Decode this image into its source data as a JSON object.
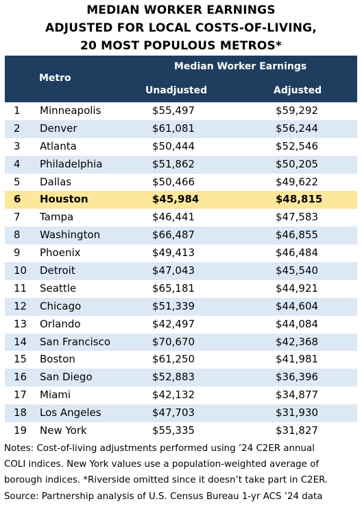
{
  "title_lines": [
    "MEDIAN WORKER EARNINGS",
    "ADJUSTED FOR LOCAL COSTS-OF-LIVING,",
    "20 MOST POPULOUS METROS*"
  ],
  "header": {
    "metro": "Metro",
    "group": "Median Worker Earnings",
    "unadjusted": "Unadjusted",
    "adjusted": "Adjusted"
  },
  "colors": {
    "header_bg": "#1f3e5f",
    "alt_row": "#dde8f5",
    "highlight_row": "#fde79a"
  },
  "chart_data": {
    "type": "table",
    "title": "MEDIAN WORKER EARNINGS ADJUSTED FOR LOCAL COSTS-OF-LIVING, 20 MOST POPULOUS METROS*",
    "columns": [
      "",
      "Metro",
      "Unadjusted",
      "Adjusted"
    ],
    "highlight_rank": "6",
    "rows": [
      {
        "rank": "1",
        "metro": "Minneapolis",
        "unadjusted": "$55,497",
        "adjusted": "$59,292"
      },
      {
        "rank": "2",
        "metro": "Denver",
        "unadjusted": "$61,081",
        "adjusted": "$56,244"
      },
      {
        "rank": "3",
        "metro": "Atlanta",
        "unadjusted": "$50,444",
        "adjusted": "$52,546"
      },
      {
        "rank": "4",
        "metro": "Philadelphia",
        "unadjusted": "$51,862",
        "adjusted": "$50,205"
      },
      {
        "rank": "5",
        "metro": "Dallas",
        "unadjusted": "$50,466",
        "adjusted": "$49,622"
      },
      {
        "rank": "6",
        "metro": "Houston",
        "unadjusted": "$45,984",
        "adjusted": "$48,815"
      },
      {
        "rank": "7",
        "metro": "Tampa",
        "unadjusted": "$46,441",
        "adjusted": "$47,583"
      },
      {
        "rank": "8",
        "metro": "Washington",
        "unadjusted": "$66,487",
        "adjusted": "$46,855"
      },
      {
        "rank": "9",
        "metro": "Phoenix",
        "unadjusted": "$49,413",
        "adjusted": "$46,484"
      },
      {
        "rank": "10",
        "metro": "Detroit",
        "unadjusted": "$47,043",
        "adjusted": "$45,540"
      },
      {
        "rank": "11",
        "metro": "Seattle",
        "unadjusted": "$65,181",
        "adjusted": "$44,921"
      },
      {
        "rank": "12",
        "metro": "Chicago",
        "unadjusted": "$51,339",
        "adjusted": "$44,604"
      },
      {
        "rank": "13",
        "metro": "Orlando",
        "unadjusted": "$42,497",
        "adjusted": "$44,084"
      },
      {
        "rank": "14",
        "metro": "San Francisco",
        "unadjusted": "$70,670",
        "adjusted": "$42,368"
      },
      {
        "rank": "15",
        "metro": "Boston",
        "unadjusted": "$61,250",
        "adjusted": "$41,981"
      },
      {
        "rank": "16",
        "metro": "San Diego",
        "unadjusted": "$52,883",
        "adjusted": "$36,396"
      },
      {
        "rank": "17",
        "metro": "Miami",
        "unadjusted": "$42,132",
        "adjusted": "$34,877"
      },
      {
        "rank": "18",
        "metro": "Los Angeles",
        "unadjusted": "$47,703",
        "adjusted": "$31,930"
      },
      {
        "rank": "19",
        "metro": "New York",
        "unadjusted": "$55,335",
        "adjusted": "$31,827"
      }
    ]
  },
  "notes_lines": [
    "Notes: Cost-of-living adjustments performed using ’24 C2ER annual",
    "COLI indices. New York values use a population-weighted average of",
    "borough indices. *Riverside omitted since it doesn’t take part in C2ER.",
    "Source: Partnership analysis of U.S. Census Bureau 1-yr ACS ’24 data"
  ]
}
